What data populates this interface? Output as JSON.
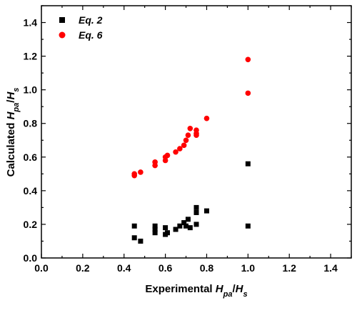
{
  "chart_data": {
    "type": "scatter",
    "xlabel": {
      "base": "Experimental ",
      "var": "H",
      "sub": "pa",
      "sep": "/",
      "var2": "H",
      "sub2": "s"
    },
    "ylabel": {
      "base": "Calculated ",
      "var": "H",
      "sub": "pa",
      "sep": "/",
      "var2": "H",
      "sub2": "s"
    },
    "xlim": [
      0.0,
      1.5
    ],
    "ylim": [
      0.0,
      1.5
    ],
    "x_ticks": [
      "0.0",
      "0.2",
      "0.4",
      "0.6",
      "0.8",
      "1.0",
      "1.2",
      "1.4"
    ],
    "y_ticks": [
      "0.0",
      "0.2",
      "0.4",
      "0.6",
      "0.8",
      "1.0",
      "1.2",
      "1.4"
    ],
    "grid": false,
    "legend_position": "top-left",
    "series": [
      {
        "name": "Eq. 2",
        "marker": "square",
        "color": "#000000",
        "points": [
          [
            0.45,
            0.19
          ],
          [
            0.45,
            0.12
          ],
          [
            0.48,
            0.1
          ],
          [
            0.55,
            0.19
          ],
          [
            0.55,
            0.17
          ],
          [
            0.55,
            0.15
          ],
          [
            0.6,
            0.18
          ],
          [
            0.6,
            0.14
          ],
          [
            0.61,
            0.15
          ],
          [
            0.65,
            0.17
          ],
          [
            0.67,
            0.19
          ],
          [
            0.69,
            0.21
          ],
          [
            0.7,
            0.19
          ],
          [
            0.71,
            0.23
          ],
          [
            0.72,
            0.18
          ],
          [
            0.75,
            0.3
          ],
          [
            0.75,
            0.27
          ],
          [
            0.75,
            0.2
          ],
          [
            0.8,
            0.28
          ],
          [
            1.0,
            0.56
          ],
          [
            1.0,
            0.19
          ]
        ]
      },
      {
        "name": "Eq. 6",
        "marker": "circle",
        "color": "#ff0000",
        "points": [
          [
            0.45,
            0.49
          ],
          [
            0.45,
            0.5
          ],
          [
            0.48,
            0.51
          ],
          [
            0.55,
            0.57
          ],
          [
            0.55,
            0.55
          ],
          [
            0.6,
            0.58
          ],
          [
            0.6,
            0.6
          ],
          [
            0.61,
            0.61
          ],
          [
            0.65,
            0.63
          ],
          [
            0.67,
            0.65
          ],
          [
            0.69,
            0.67
          ],
          [
            0.7,
            0.7
          ],
          [
            0.71,
            0.73
          ],
          [
            0.72,
            0.77
          ],
          [
            0.75,
            0.76
          ],
          [
            0.75,
            0.74
          ],
          [
            0.75,
            0.73
          ],
          [
            0.8,
            0.83
          ],
          [
            1.0,
            0.98
          ],
          [
            1.0,
            1.18
          ]
        ]
      }
    ]
  }
}
